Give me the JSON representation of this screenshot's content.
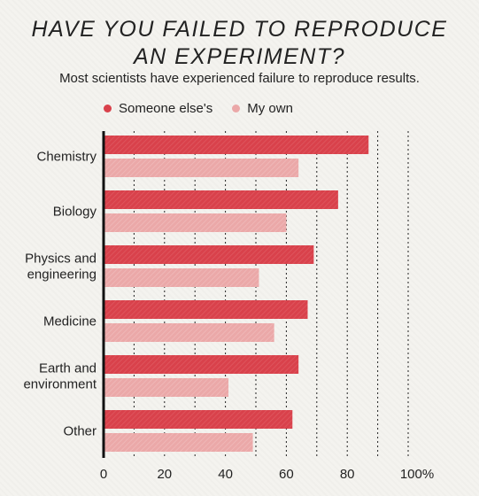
{
  "title_lines": [
    "HAVE YOU FAILED TO REPRODUCE",
    "AN EXPERIMENT?"
  ],
  "subtitle": "Most scientists have experienced failure to reproduce results.",
  "colors": {
    "someone_else": "#d9414b",
    "my_own": "#eba8a8",
    "grid": "#222222"
  },
  "chart_data": {
    "type": "bar",
    "orientation": "horizontal",
    "title": "HAVE YOU FAILED TO REPRODUCE AN EXPERIMENT?",
    "subtitle": "Most scientists have experienced failure to reproduce results.",
    "categories": [
      [
        "Chemistry"
      ],
      [
        "Biology"
      ],
      [
        "Physics and",
        "engineering"
      ],
      [
        "Medicine"
      ],
      [
        "Earth and",
        "environment"
      ],
      [
        "Other"
      ]
    ],
    "series": [
      {
        "name": "Someone else's",
        "values": [
          87,
          77,
          69,
          67,
          64,
          62
        ]
      },
      {
        "name": "My own",
        "values": [
          64,
          60,
          51,
          56,
          41,
          49
        ]
      }
    ],
    "xlim": [
      0,
      100
    ],
    "xticks": [
      "0",
      "20",
      "40",
      "60",
      "80",
      "100%"
    ],
    "grid": "dotted vertical lines every 10",
    "legend_position": "top-left"
  }
}
